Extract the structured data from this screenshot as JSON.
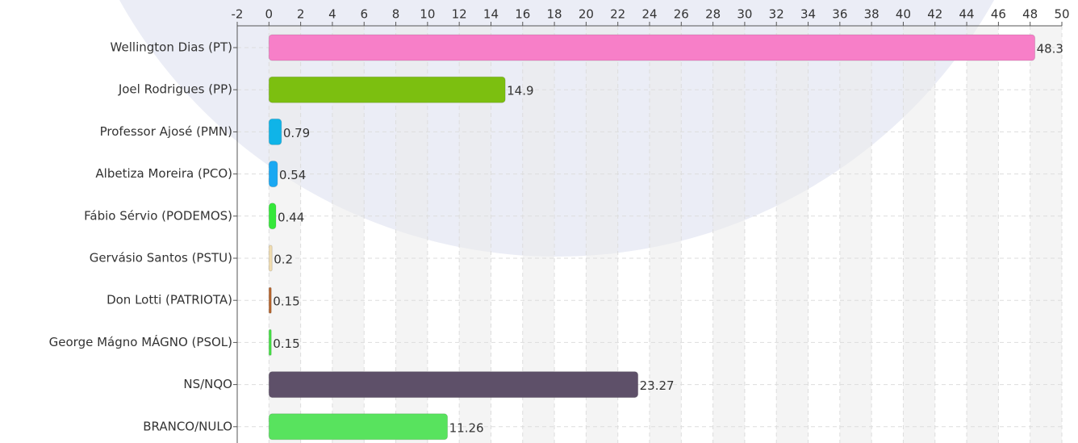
{
  "chart_data": {
    "type": "barh",
    "categories": [
      "Wellington Dias (PT)",
      "Joel Rodrigues (PP)",
      "Professor Ajosé (PMN)",
      "Albetiza Moreira (PCO)",
      "Fábio Sérvio (PODEMOS)",
      "Gervásio Santos (PSTU)",
      "Don Lotti (PATRIOTA)",
      "George Mágno MÁGNO (PSOL)",
      "NS/NQO",
      "BRANCO/NULO"
    ],
    "values": [
      48.3,
      14.9,
      0.79,
      0.54,
      0.44,
      0.2,
      0.15,
      0.15,
      23.27,
      11.26
    ],
    "colors": [
      "#f77fc8",
      "#7cbf10",
      "#0fb4e8",
      "#1aa8f2",
      "#35e83a",
      "#f0dcb0",
      "#b5652e",
      "#44e044",
      "#5e5069",
      "#58e35e"
    ],
    "xlim": [
      -2,
      50
    ],
    "xticks": [
      -2,
      0,
      2,
      4,
      6,
      8,
      10,
      12,
      14,
      16,
      18,
      20,
      22,
      24,
      26,
      28,
      30,
      32,
      34,
      36,
      38,
      40,
      42,
      44,
      46,
      48,
      50
    ],
    "grid": true
  }
}
